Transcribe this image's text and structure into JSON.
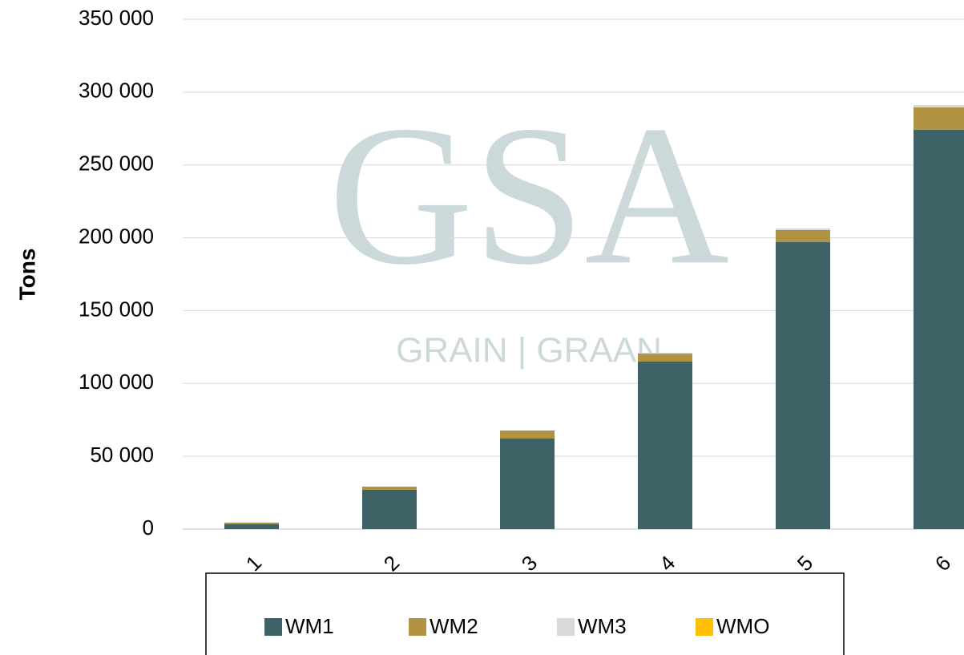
{
  "chart_data": {
    "type": "bar",
    "stacked": true,
    "y_label": "Tons",
    "watermark": {
      "logo": "GSA",
      "text": "GRAIN | GRAAN"
    },
    "categories": [
      "1",
      "2",
      "3",
      "4",
      "5",
      "6"
    ],
    "series": [
      {
        "name": "WM1",
        "color": "#3d6366",
        "values": [
          3500,
          27000,
          62200,
          115000,
          197000,
          274100
        ]
      },
      {
        "name": "WM2",
        "color": "#b09343",
        "values": [
          1000,
          2200,
          5500,
          5500,
          8300,
          15400
        ]
      },
      {
        "name": "WM3",
        "color": "#d9d9d9",
        "values": [
          0,
          0,
          0,
          500,
          1100,
          1600
        ]
      },
      {
        "name": "WMO",
        "color": "#ffc000",
        "values": [
          0,
          0,
          0,
          0,
          0,
          0
        ]
      }
    ],
    "ylim": [
      0,
      350000
    ],
    "yticks": [
      {
        "value": 0,
        "label": "0"
      },
      {
        "value": 50000,
        "label": "50 000"
      },
      {
        "value": 100000,
        "label": "100 000"
      },
      {
        "value": 150000,
        "label": "150 000"
      },
      {
        "value": 200000,
        "label": "200 000"
      },
      {
        "value": 250000,
        "label": "250 000"
      },
      {
        "value": 300000,
        "label": "300 000"
      },
      {
        "value": 350000,
        "label": "350 000"
      }
    ],
    "grid": true,
    "legend": "bottom"
  }
}
